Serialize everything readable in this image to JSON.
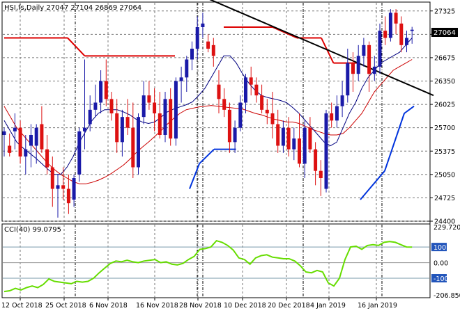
{
  "main_panel": {
    "title": "HSI,fs,Daily  27047 27104 26869 27064",
    "last_price_label": "27064",
    "y_ticks": [
      "27325",
      "27000",
      "26675",
      "26350",
      "26025",
      "25700",
      "25375",
      "25050",
      "24725",
      "24400"
    ]
  },
  "cci_panel": {
    "label": "CCI(40) 99.0795",
    "y_ticks": [
      "229.7202",
      "100",
      "0.00",
      "-100",
      "-206.8504"
    ]
  },
  "x_ticks": [
    "12 Oct 2018",
    "25 Oct 2018",
    "6 Nov 2018",
    "16 Nov 2018",
    "28 Nov 2018",
    "10 Dec 2018",
    "20 Dec 2018",
    "4 Jan 2019",
    "16 Jan 2019"
  ],
  "colors": {
    "up_candle": "#1a1aa8",
    "down_candle": "#dd1111",
    "ma_fast": "#000080",
    "ma_slow": "#cc0000",
    "resistance_red": "#dd0000",
    "support_blue": "#0033dd",
    "trendline": "#000000",
    "cci_line": "#66dd00",
    "grid": "#777777"
  },
  "chart_data": {
    "type": "candlestick",
    "symbol": "HSI",
    "timeframe": "Daily",
    "last_bar": {
      "open": 27047,
      "high": 27104,
      "low": 26869,
      "close": 27064
    },
    "ylim": [
      24400,
      27400
    ],
    "candles": [
      [
        25600,
        25700,
        25300,
        25650
      ],
      [
        25450,
        25620,
        25300,
        25350
      ],
      [
        25650,
        25900,
        25400,
        25700
      ],
      [
        25700,
        25800,
        25200,
        25300
      ],
      [
        25300,
        25600,
        25050,
        25400
      ],
      [
        25450,
        25750,
        25150,
        25600
      ],
      [
        25450,
        25750,
        25200,
        25700
      ],
      [
        25750,
        26000,
        25350,
        25400
      ],
      [
        25400,
        25600,
        25050,
        25150
      ],
      [
        25150,
        25300,
        24600,
        24850
      ],
      [
        24850,
        25050,
        24450,
        24900
      ],
      [
        24900,
        25150,
        24700,
        24850
      ],
      [
        24850,
        25050,
        24500,
        24650
      ],
      [
        24700,
        25050,
        24600,
        25000
      ],
      [
        25050,
        25700,
        24950,
        25650
      ],
      [
        25650,
        26650,
        25400,
        25700
      ],
      [
        25750,
        26150,
        25650,
        25950
      ],
      [
        25950,
        26300,
        25850,
        26050
      ],
      [
        26050,
        26500,
        25900,
        26350
      ],
      [
        26350,
        26650,
        26000,
        26100
      ],
      [
        26100,
        26200,
        25800,
        25900
      ],
      [
        25900,
        26100,
        25350,
        25500
      ],
      [
        25500,
        25950,
        25300,
        25850
      ],
      [
        25850,
        26100,
        25600,
        25700
      ],
      [
        25700,
        26050,
        25000,
        25150
      ],
      [
        25150,
        25900,
        25050,
        25850
      ],
      [
        25850,
        26350,
        25750,
        26150
      ],
      [
        26150,
        26350,
        25950,
        26050
      ],
      [
        26050,
        26250,
        25650,
        25900
      ],
      [
        25900,
        26200,
        25550,
        25600
      ],
      [
        25600,
        26200,
        25500,
        26100
      ],
      [
        26100,
        26250,
        25450,
        25550
      ],
      [
        25550,
        26400,
        25450,
        26350
      ],
      [
        26350,
        26550,
        26050,
        26400
      ],
      [
        26400,
        26700,
        26200,
        26650
      ],
      [
        26650,
        26900,
        26500,
        26800
      ],
      [
        26800,
        27250,
        26650,
        27100
      ],
      [
        27100,
        27300,
        26950,
        27150
      ],
      [
        26900,
        27000,
        26750,
        26800
      ],
      [
        26850,
        26950,
        26550,
        26700
      ],
      [
        26300,
        26500,
        25900,
        26100
      ],
      [
        26100,
        26250,
        25850,
        25950
      ],
      [
        25950,
        26050,
        25350,
        25500
      ],
      [
        25500,
        25800,
        25350,
        25700
      ],
      [
        25700,
        26150,
        25650,
        26050
      ],
      [
        26050,
        26450,
        25900,
        26400
      ],
      [
        26400,
        26550,
        26150,
        26300
      ],
      [
        26300,
        26400,
        26050,
        26150
      ],
      [
        26150,
        26300,
        25900,
        25950
      ],
      [
        25950,
        26100,
        25750,
        25900
      ],
      [
        25900,
        26200,
        25550,
        25750
      ],
      [
        25750,
        25950,
        25350,
        25450
      ],
      [
        25450,
        25800,
        25350,
        25700
      ],
      [
        25700,
        25850,
        25300,
        25400
      ],
      [
        25400,
        25700,
        25250,
        25550
      ],
      [
        25550,
        25900,
        25150,
        25200
      ],
      [
        25200,
        25800,
        25000,
        25700
      ],
      [
        25700,
        25850,
        25350,
        25400
      ],
      [
        25400,
        25500,
        24900,
        25100
      ],
      [
        25100,
        25250,
        24750,
        25000
      ],
      [
        24850,
        25950,
        24800,
        25900
      ],
      [
        25900,
        26050,
        25700,
        25800
      ],
      [
        25800,
        26150,
        25700,
        26000
      ],
      [
        26000,
        26350,
        25850,
        26150
      ],
      [
        26150,
        26800,
        26050,
        26600
      ],
      [
        26600,
        26750,
        26200,
        26450
      ],
      [
        26450,
        26850,
        26350,
        26700
      ],
      [
        26700,
        26950,
        26550,
        26850
      ],
      [
        26850,
        26900,
        26200,
        26450
      ],
      [
        26450,
        26700,
        26350,
        26550
      ],
      [
        26550,
        27150,
        26450,
        27050
      ],
      [
        27050,
        27250,
        26850,
        26950
      ],
      [
        26950,
        27350,
        26900,
        27300
      ],
      [
        27300,
        27350,
        27000,
        27150
      ],
      [
        27150,
        27250,
        26750,
        26850
      ],
      [
        26850,
        27050,
        26750,
        26950
      ],
      [
        27047,
        27104,
        26869,
        27064
      ]
    ],
    "ma_fast": [
      25800,
      25650,
      25500,
      25420,
      25350,
      25280,
      25200,
      25120,
      25050,
      25050,
      25150,
      25300,
      25500,
      25650,
      25800,
      25900,
      25950,
      25950,
      25950,
      25920,
      25880,
      25820,
      25780,
      25760,
      25780,
      25850,
      25920,
      25960,
      25990,
      26020,
      26060,
      26150,
      26250,
      26400,
      26550,
      26700,
      26700,
      26600,
      26450,
      26320,
      26220,
      26150,
      26120,
      26100,
      26080,
      26050,
      25980,
      25900,
      25800,
      25700,
      25600,
      25500,
      25450,
      25500,
      25700,
      25900,
      26050,
      26250,
      26400,
      26500,
      26600,
      26650,
      26700,
      26750,
      26850,
      26950
    ],
    "ma_slow": [
      26000,
      25850,
      25700,
      25600,
      25500,
      25400,
      25300,
      25200,
      25120,
      25050,
      25000,
      24950,
      24920,
      24920,
      24940,
      24970,
      25010,
      25060,
      25120,
      25180,
      25260,
      25350,
      25430,
      25500,
      25580,
      25660,
      25750,
      25830,
      25900,
      25950,
      25970,
      25990,
      26000,
      26010,
      26000,
      25990,
      25980,
      25970,
      25960,
      25930,
      25900,
      25880,
      25850,
      25820,
      25800,
      25780,
      25780,
      25760,
      25720,
      25680,
      25650,
      25620,
      25600,
      25600,
      25620,
      25700,
      25800,
      25900,
      26050,
      26200,
      26300,
      26400,
      26500,
      26550,
      26600,
      26650
    ],
    "resistance_red": {
      "segments": [
        {
          "x_days": [
            0,
            26
          ],
          "values": [
            26950,
            26950
          ]
        },
        {
          "x_days": [
            26,
            33
          ],
          "values": [
            26950,
            26700
          ]
        },
        {
          "x_days": [
            33,
            70
          ],
          "values": [
            26700,
            26700
          ]
        },
        {
          "x_days": [
            90,
            110
          ],
          "values": [
            27100,
            27100
          ]
        },
        {
          "x_days": [
            110,
            120
          ],
          "values": [
            27100,
            26950
          ]
        },
        {
          "x_days": [
            120,
            130
          ],
          "values": [
            26950,
            26950
          ]
        },
        {
          "x_days": [
            130,
            135
          ],
          "values": [
            26950,
            26600
          ]
        },
        {
          "x_days": [
            135,
            145
          ],
          "values": [
            26600,
            26600
          ]
        }
      ]
    },
    "support_blue": {
      "segments": [
        {
          "x_days": [
            76,
            80
          ],
          "values": [
            24850,
            25200
          ]
        },
        {
          "x_days": [
            80,
            86
          ],
          "values": [
            25200,
            25400
          ]
        },
        {
          "x_days": [
            86,
            95
          ],
          "values": [
            25400,
            25400
          ]
        },
        {
          "x_days": [
            146,
            156
          ],
          "values": [
            24700,
            25100
          ]
        },
        {
          "x_days": [
            156,
            164
          ],
          "values": [
            25100,
            25900
          ]
        },
        {
          "x_days": [
            164,
            168
          ],
          "values": [
            25900,
            26000
          ]
        }
      ]
    },
    "trendline": {
      "from": {
        "x_days": 73,
        "value": 27650
      },
      "to": {
        "x_days": 176,
        "value": 26150
      }
    },
    "cci": {
      "label": "CCI(40)",
      "last_value": 99.0795,
      "ylim": [
        -206.8504,
        229.7202
      ],
      "levels": [
        100,
        0,
        -100
      ],
      "values": [
        -185,
        -180,
        -165,
        -175,
        -160,
        -150,
        -160,
        -140,
        -105,
        -120,
        -125,
        -130,
        -135,
        -120,
        -125,
        -120,
        -100,
        -65,
        -35,
        -5,
        10,
        5,
        15,
        5,
        0,
        10,
        15,
        20,
        0,
        5,
        -10,
        -15,
        -5,
        20,
        40,
        85,
        90,
        100,
        140,
        130,
        110,
        80,
        30,
        20,
        -10,
        30,
        45,
        50,
        35,
        30,
        25,
        25,
        10,
        -20,
        -60,
        -65,
        -50,
        -60,
        -130,
        -150,
        -100,
        20,
        100,
        105,
        85,
        110,
        115,
        110,
        130,
        135,
        130,
        115,
        100,
        99.0795
      ]
    }
  }
}
